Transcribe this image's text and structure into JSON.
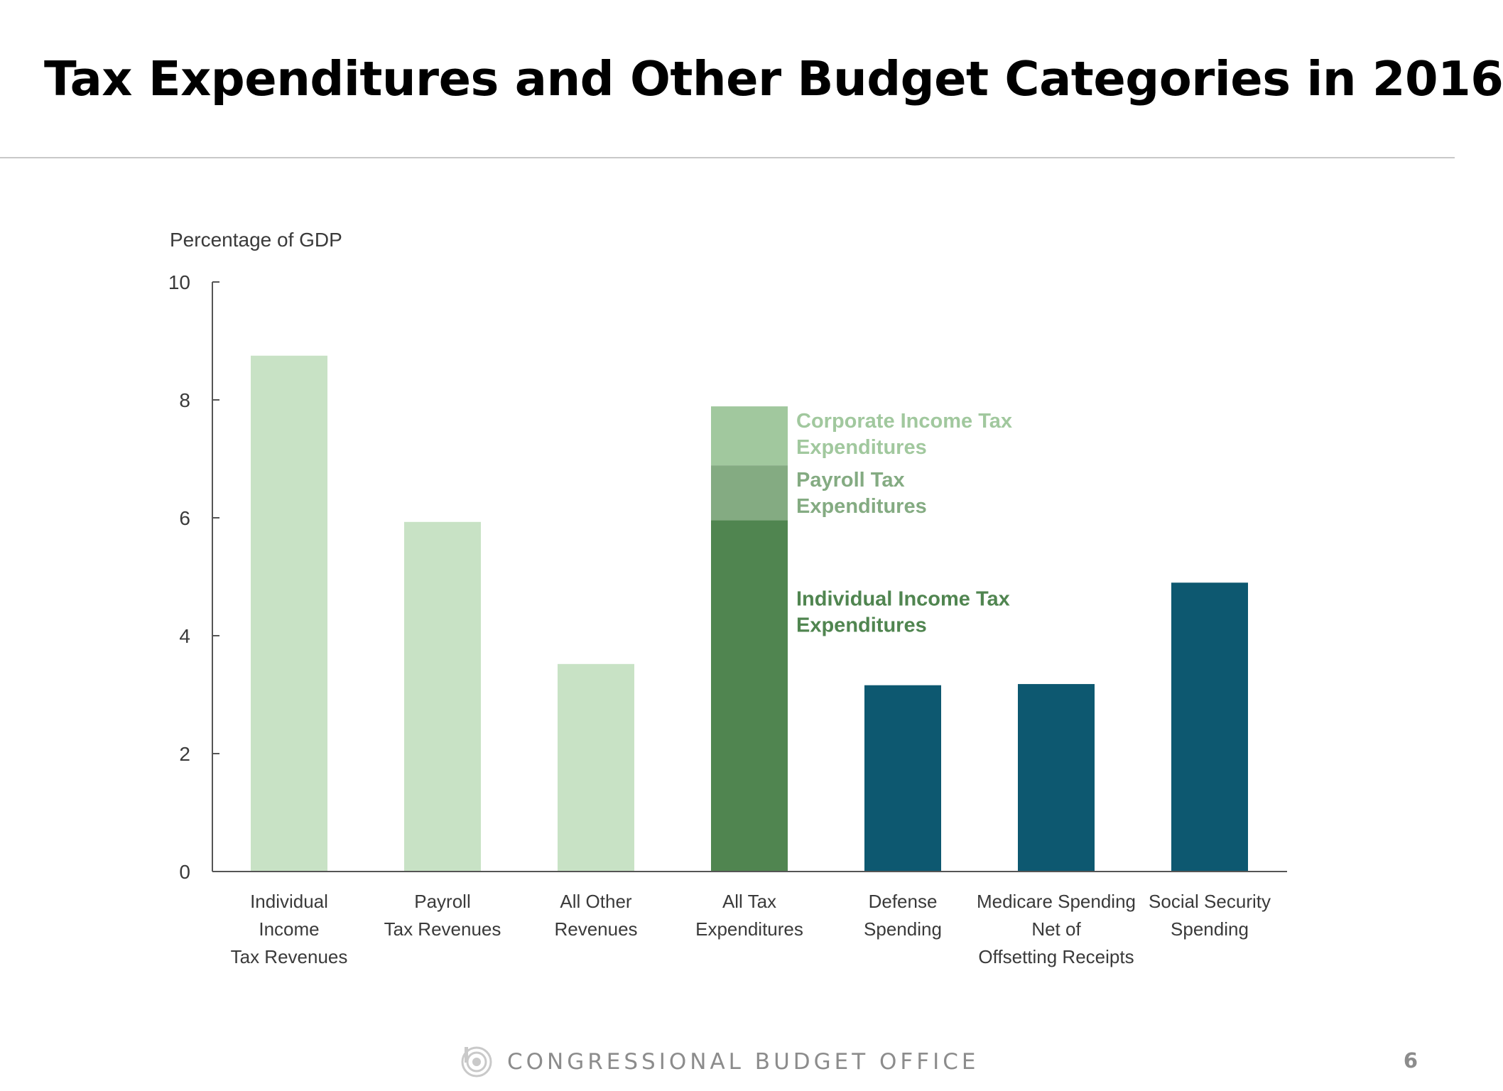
{
  "slide": {
    "title": "Tax Expenditures and Other Budget Categories in 2016",
    "footer": "CONGRESSIONAL BUDGET OFFICE",
    "page_number": "6"
  },
  "logo_icon": "cbo-logo-icon",
  "chart_data": {
    "type": "bar",
    "title": "",
    "ylabel": "Percentage of GDP",
    "xlabel": "",
    "ylim": [
      0,
      10
    ],
    "yticks": [
      0,
      2,
      4,
      6,
      8,
      10
    ],
    "grid": false,
    "categories": [
      "Individual Income Tax Revenues",
      "Payroll Tax Revenues",
      "All Other Revenues",
      "All Tax Expenditures",
      "Defense Spending",
      "Medicare Spending Net of Offsetting Receipts",
      "Social Security Spending"
    ],
    "category_label_lines": [
      [
        "Individual",
        "Income",
        "Tax Revenues"
      ],
      [
        "Payroll",
        "Tax Revenues"
      ],
      [
        "All Other",
        "Revenues"
      ],
      [
        "All Tax",
        "Expenditures"
      ],
      [
        "Defense",
        "Spending"
      ],
      [
        "Medicare Spending",
        "Net of",
        "Offsetting Receipts"
      ],
      [
        "Social Security",
        "Spending"
      ]
    ],
    "values": [
      8.75,
      5.93,
      3.52,
      null,
      3.16,
      3.18,
      4.9
    ],
    "bar_colors": [
      "#c8e2c5",
      "#c8e2c5",
      "#c8e2c5",
      null,
      "#0d5870",
      "#0d5870",
      "#0d5870"
    ],
    "stacked_bar": {
      "category": "All Tax Expenditures",
      "segments": [
        {
          "name": "Individual Income Tax Expenditures",
          "label_lines": [
            "Individual Income Tax",
            "Expenditures"
          ],
          "value": 5.96,
          "color": "#508550",
          "label_color": "#508550"
        },
        {
          "name": "Payroll Tax Expenditures",
          "label_lines": [
            "Payroll Tax",
            "Expenditures"
          ],
          "value": 0.93,
          "color": "#84ab82",
          "label_color": "#84ab82"
        },
        {
          "name": "Corporate Income Tax Expenditures",
          "label_lines": [
            "Corporate Income Tax",
            "Expenditures"
          ],
          "value": 1.0,
          "color": "#a1c89e",
          "label_color": "#a1c89e"
        }
      ]
    },
    "axis_color": "#555555"
  }
}
